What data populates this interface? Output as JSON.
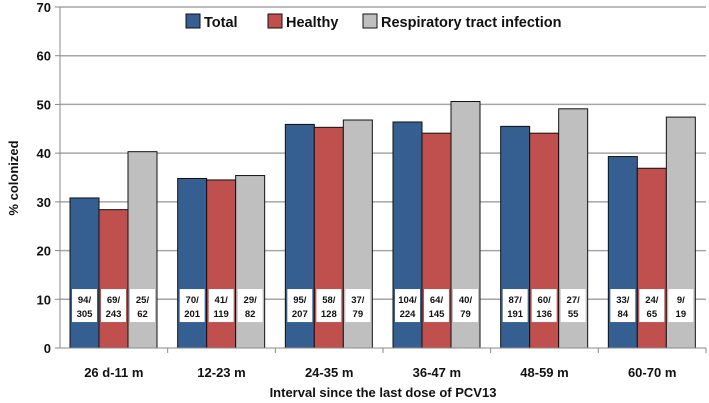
{
  "chart_data": {
    "type": "bar",
    "title": "",
    "xlabel": "Interval since the last dose of PCV13",
    "ylabel": "% colonized",
    "ylim": [
      0,
      70
    ],
    "yticks": [
      "0",
      "10",
      "20",
      "30",
      "40",
      "50",
      "60",
      "70"
    ],
    "grid": true,
    "legend_position": "top-center",
    "categories": [
      "26 d-11 m",
      "12-23 m",
      "24-35 m",
      "36-47 m",
      "48-59 m",
      "60-70 m"
    ],
    "series": [
      {
        "name": "Total",
        "color": "#365f91",
        "values": [
          30.8,
          34.8,
          45.9,
          46.4,
          45.5,
          39.3
        ],
        "labels": [
          [
            "94/",
            "305"
          ],
          [
            "70/",
            "201"
          ],
          [
            "95/",
            "207"
          ],
          [
            "104/",
            "224"
          ],
          [
            "87/",
            "191"
          ],
          [
            "33/",
            "84"
          ]
        ]
      },
      {
        "name": "Healthy",
        "color": "#c0504d",
        "values": [
          28.4,
          34.5,
          45.3,
          44.1,
          44.1,
          36.9
        ],
        "labels": [
          [
            "69/",
            "243"
          ],
          [
            "41/",
            "119"
          ],
          [
            "58/",
            "128"
          ],
          [
            "64/",
            "145"
          ],
          [
            "60/",
            "136"
          ],
          [
            "24/",
            "65"
          ]
        ]
      },
      {
        "name": "Respiratory tract infection",
        "color": "#bfbfbf",
        "values": [
          40.3,
          35.4,
          46.8,
          50.6,
          49.1,
          47.4
        ],
        "labels": [
          [
            "25/",
            "62"
          ],
          [
            "29/",
            "82"
          ],
          [
            "37/",
            "79"
          ],
          [
            "40/",
            "79"
          ],
          [
            "27/",
            "55"
          ],
          [
            "9/",
            "19"
          ]
        ]
      }
    ]
  }
}
